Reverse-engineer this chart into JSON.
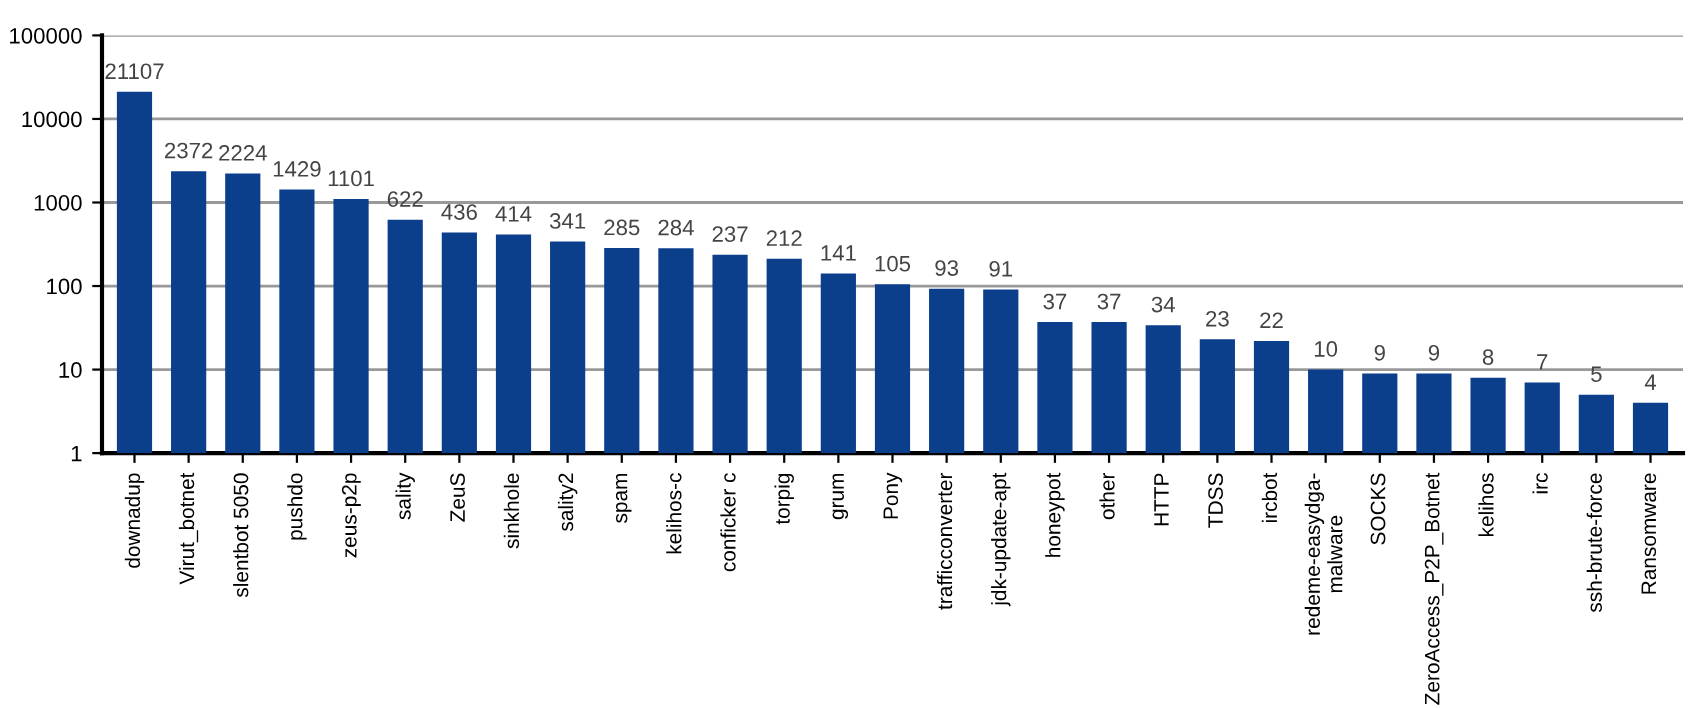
{
  "chart_data": {
    "type": "bar",
    "categories": [
      "downadup",
      "Virut_botnet",
      "slentbot 5050",
      "pushdo",
      "zeus-p2p",
      "sality",
      "ZeuS",
      "sinkhole",
      "sality2",
      "spam",
      "kelihos-c",
      "conficker c",
      "torpig",
      "grum",
      "Pony",
      "trafficconverter",
      "jdk-update-apt",
      "honeypot",
      "other",
      "HTTP",
      "TDSS",
      "ircbot",
      "redeme-easydga-\nmalware",
      "SOCKS",
      "ZeroAccess_P2P_Botnet",
      "kelihos",
      "irc",
      "ssh-brute-force",
      "Ransomware"
    ],
    "values": [
      21107,
      2372,
      2224,
      1429,
      1101,
      622,
      436,
      414,
      341,
      285,
      284,
      237,
      212,
      141,
      105,
      93,
      91,
      37,
      37,
      34,
      23,
      22,
      10,
      9,
      9,
      8,
      7,
      5,
      4
    ],
    "color": "#0b3f8c",
    "log": true,
    "ylim": [
      1,
      100000
    ],
    "yticks": [
      1,
      10,
      100,
      1000,
      10000,
      100000
    ],
    "grid": "y",
    "data_labels": true
  }
}
